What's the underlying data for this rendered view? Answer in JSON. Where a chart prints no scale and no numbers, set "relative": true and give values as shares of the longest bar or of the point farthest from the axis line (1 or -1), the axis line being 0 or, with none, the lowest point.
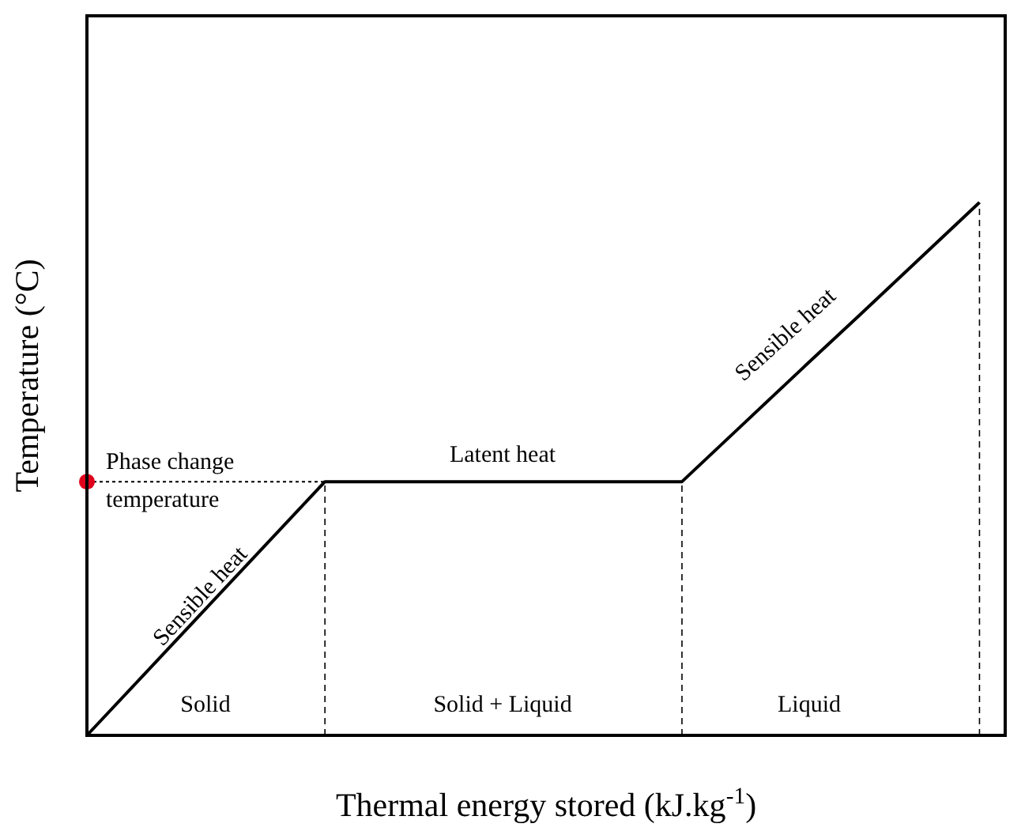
{
  "chart_data": {
    "type": "line",
    "relative": true,
    "xlabel": "Thermal energy stored (kJ.kg$^{-1}$)",
    "ylabel": "Temperature (°C)",
    "categories": [
      null,
      null,
      null,
      null,
      null,
      null,
      null,
      null,
      null,
      null,
      null,
      null,
      null,
      null,
      null,
      null
    ],
    "series": [
      {
        "color": "#000000",
        "values": [
          0,
          0.119,
          0.238,
          0.357,
          0.476,
          0.476,
          0.476,
          0.476,
          0.476,
          0.476,
          0.476,
          0.581,
          0.686,
          0.79,
          0.895,
          1
        ]
      }
    ],
    "ref_lines": [
      {
        "axis": "y",
        "value": 0.476,
        "label": "Phase change temperature",
        "line_style": "dotted",
        "color": "#000000"
      }
    ],
    "annotations": [
      "Sensible heat",
      "Latent heat",
      "Sensible heat",
      "Solid",
      "Solid + Liquid",
      "Liquid"
    ]
  }
}
